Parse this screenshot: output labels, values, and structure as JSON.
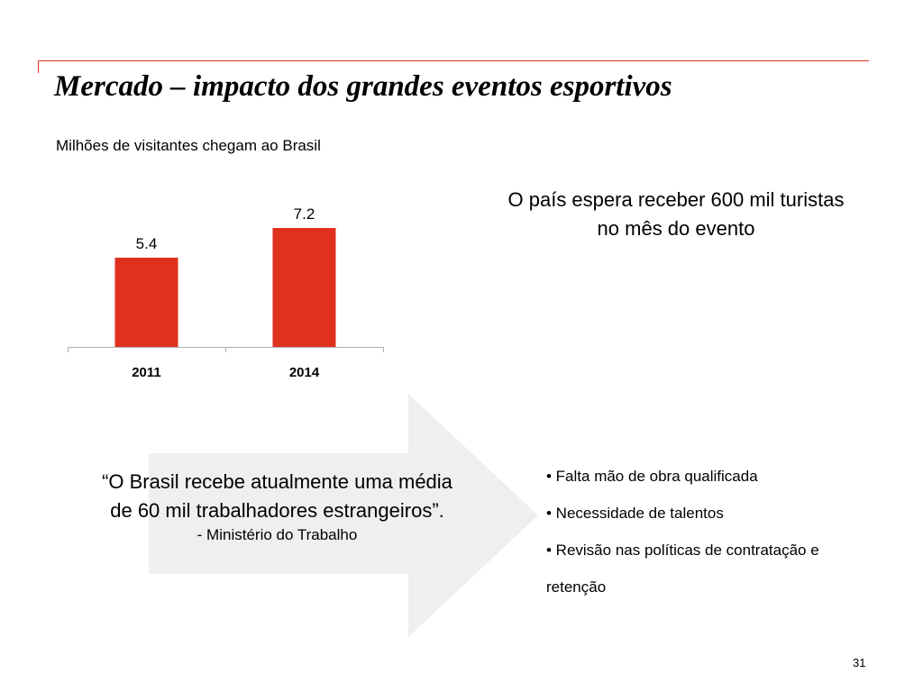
{
  "slide": {
    "title": "Mercado – impacto dos grandes eventos esportivos",
    "subtitle": "Milhões de visitantes chegam ao Brasil",
    "expectation_line1": "O país espera receber 600 mil turistas",
    "expectation_line2": "no mês do evento",
    "quote_line1": "“O Brasil recebe atualmente uma média",
    "quote_line2": "de 60 mil trabalhadores estrangeiros”.",
    "quote_source": "- Ministério do Trabalho",
    "bullets": [
      "• Falta mão de obra qualificada",
      "• Necessidade de talentos",
      "• Revisão nas políticas de contratação e",
      "retenção"
    ],
    "page_number": "31"
  },
  "colors": {
    "accent": "#e0301e",
    "bar": "#e0301e",
    "arrow": "#efefef",
    "axis": "#b0b0b0"
  },
  "chart_data": {
    "type": "bar",
    "title": "",
    "categories": [
      "2011",
      "2014"
    ],
    "values": [
      5.4,
      7.2
    ],
    "data_labels": [
      "5.4",
      "7.2"
    ],
    "xlabel": "",
    "ylabel": "",
    "ylim": [
      0,
      7.2
    ],
    "grid": false,
    "legend": "none"
  }
}
